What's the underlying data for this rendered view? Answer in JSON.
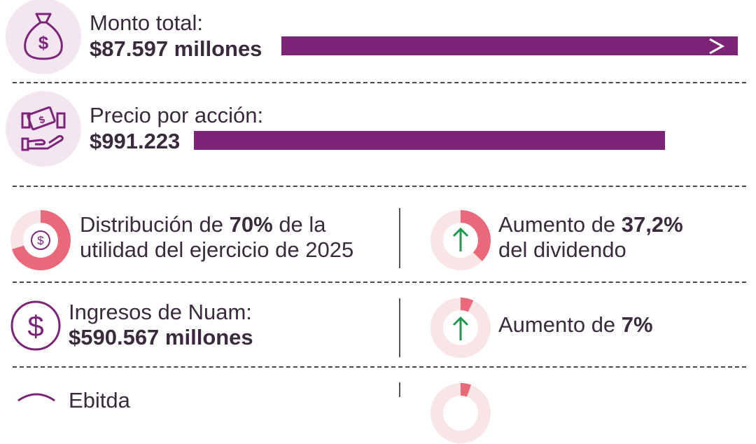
{
  "rows": {
    "monto": {
      "label": "Monto total:",
      "value": "$87.597 millones",
      "icon": "money-bag-icon"
    },
    "precio": {
      "label": "Precio por acción:",
      "value": "$991.223",
      "icon": "handshake-money-icon"
    },
    "distribucion": {
      "pre": "Distribución de ",
      "pct": "70%",
      "post": " de la",
      "line2": "utilidad del ejercicio de 2025",
      "fraction": 0.7,
      "icon": "dollar-coin-icon"
    },
    "dividendo": {
      "pre": "Aumento de ",
      "pct": "37,2%",
      "line2": "del dividendo",
      "fraction": 0.372,
      "icon": "arrow-up-icon"
    },
    "ingresos": {
      "label": "Ingresos de Nuam:",
      "value": "$590.567 millones",
      "icon": "dollar-circle-icon"
    },
    "aumento_ingresos": {
      "pre": "Aumento de ",
      "pct": "7%",
      "fraction": 0.07,
      "icon": "arrow-up-icon"
    },
    "partial": {
      "label": "Ebitda"
    }
  },
  "colors": {
    "bar": "#7b2478",
    "donut": "#e9697b",
    "donut_track": "#f9e4e6",
    "arrow": "#1f9a4b",
    "icon_bg": "#f3e6f1",
    "icon_stroke": "#7b2478"
  }
}
